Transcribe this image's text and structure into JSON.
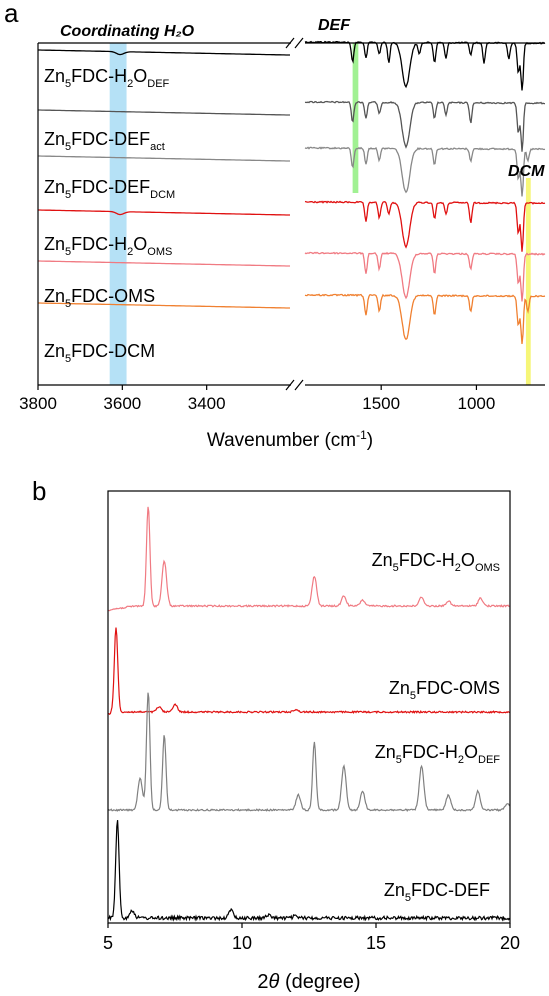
{
  "panel_a": {
    "letter": "a",
    "highlights": {
      "h2o": "Coordinating H₂O",
      "def": "DEF",
      "dcm": "DCM"
    },
    "xlabel_base": "Wavenumber (cm",
    "xlabel_sup": "-1",
    "xlabel_end": ")",
    "left_ticks": [
      "3800",
      "3600",
      "3400"
    ],
    "right_ticks": [
      "1500",
      "1000"
    ],
    "labels": [
      {
        "base": "Zn",
        "s1": "5",
        "mid": "FDC-H",
        "s2": "2",
        "tail": "O",
        "s3": "DEF"
      },
      {
        "base": "Zn",
        "s1": "5",
        "mid": "FDC-DEF",
        "s2": "act",
        "tail": "",
        "s3": ""
      },
      {
        "base": "Zn",
        "s1": "5",
        "mid": "FDC-DEF",
        "s2": "DCM",
        "tail": "",
        "s3": ""
      },
      {
        "base": "Zn",
        "s1": "5",
        "mid": "FDC-H",
        "s2": "2",
        "tail": "O",
        "s3": "OMS"
      },
      {
        "base": "Zn",
        "s1": "5",
        "mid": "FDC-OMS",
        "s2": "",
        "tail": "",
        "s3": ""
      },
      {
        "base": "Zn",
        "s1": "5",
        "mid": "FDC-DCM",
        "s2": "",
        "tail": "",
        "s3": ""
      }
    ],
    "colors": [
      "#000000",
      "#555555",
      "#888888",
      "#e01010",
      "#f07a82",
      "#f08030"
    ]
  },
  "panel_b": {
    "letter": "b",
    "xlabel_main": "2",
    "xlabel_theta": "θ",
    "xlabel_unit": " (degree)",
    "ticks": [
      "5",
      "10",
      "15",
      "20"
    ],
    "labels": [
      {
        "base": "Zn",
        "s1": "5",
        "mid": "FDC-H",
        "s2": "2",
        "tail": "O",
        "s3": "OMS"
      },
      {
        "base": "Zn",
        "s1": "5",
        "mid": "FDC-OMS",
        "s2": "",
        "tail": "",
        "s3": ""
      },
      {
        "base": "Zn",
        "s1": "5",
        "mid": "FDC-H",
        "s2": "2",
        "tail": "O",
        "s3": "DEF"
      },
      {
        "base": "Zn",
        "s1": "5",
        "mid": "FDC-DEF",
        "s2": "",
        "tail": "",
        "s3": ""
      }
    ],
    "colors": [
      "#f07a82",
      "#e01010",
      "#808080",
      "#000000"
    ]
  },
  "chart_data": [
    {
      "type": "line",
      "xlabel": "Wavenumber (cm-1)",
      "x_break": true,
      "xlim_left": [
        3800,
        3200
      ],
      "xlim_right": [
        1900,
        640
      ],
      "highlight_regions": [
        {
          "label": "Coordinating H2O",
          "x": [
            3630,
            3590
          ],
          "color": "#a8dcf5"
        },
        {
          "label": "DEF",
          "x": [
            1650,
            1620
          ],
          "color": "#90ee80"
        },
        {
          "label": "DCM",
          "x": [
            740,
            715
          ],
          "color": "#f5f560"
        }
      ],
      "series": [
        {
          "name": "Zn5FDC-H2ODEF",
          "color": "#000000",
          "peaks": [
            1650,
            1580,
            1510,
            1460,
            1370,
            1300,
            1220,
            1160,
            1030,
            960,
            830,
            780,
            760
          ]
        },
        {
          "name": "Zn5FDC-DEFact",
          "color": "#555555",
          "peaks": [
            1650,
            1580,
            1510,
            1370,
            1220,
            1160,
            1030,
            780,
            760
          ]
        },
        {
          "name": "Zn5FDC-DEFDCM",
          "color": "#888888",
          "peaks": [
            1650,
            1580,
            1510,
            1370,
            1220,
            1030,
            780,
            760,
            730
          ]
        },
        {
          "name": "Zn5FDC-H2OOMS",
          "color": "#e01010",
          "peaks": [
            1580,
            1510,
            1460,
            1370,
            1220,
            1160,
            1030,
            780,
            760
          ]
        },
        {
          "name": "Zn5FDC-OMS",
          "color": "#f07a82",
          "peaks": [
            1580,
            1510,
            1370,
            1220,
            1030,
            780,
            760
          ]
        },
        {
          "name": "Zn5FDC-DCM",
          "color": "#f08030",
          "peaks": [
            1580,
            1510,
            1370,
            1220,
            1030,
            780,
            760,
            730
          ]
        }
      ]
    },
    {
      "type": "line",
      "xlabel": "2θ (degree)",
      "xlim": [
        5,
        20
      ],
      "series": [
        {
          "name": "Zn5FDC-H2OOMS",
          "color": "#f07a82",
          "peaks": [
            [
              6.5,
              1.0
            ],
            [
              7.1,
              0.45
            ],
            [
              12.7,
              0.3
            ],
            [
              13.8,
              0.1
            ],
            [
              14.5,
              0.06
            ],
            [
              16.7,
              0.09
            ],
            [
              17.7,
              0.05
            ],
            [
              18.9,
              0.08
            ]
          ]
        },
        {
          "name": "Zn5FDC-OMS",
          "color": "#e01010",
          "peaks": [
            [
              5.3,
              1.0
            ],
            [
              6.9,
              0.06
            ],
            [
              7.5,
              0.09
            ],
            [
              12.0,
              0.03
            ]
          ]
        },
        {
          "name": "Zn5FDC-H2ODEF",
          "color": "#808080",
          "peaks": [
            [
              6.2,
              0.25
            ],
            [
              6.5,
              0.95
            ],
            [
              7.1,
              0.6
            ],
            [
              12.1,
              0.12
            ],
            [
              12.7,
              0.55
            ],
            [
              13.8,
              0.35
            ],
            [
              14.5,
              0.15
            ],
            [
              16.7,
              0.35
            ],
            [
              17.7,
              0.12
            ],
            [
              18.8,
              0.15
            ],
            [
              19.9,
              0.05
            ]
          ]
        },
        {
          "name": "Zn5FDC-DEF",
          "color": "#000000",
          "peaks": [
            [
              5.35,
              1.0
            ],
            [
              5.9,
              0.08
            ],
            [
              9.6,
              0.08
            ],
            [
              11.0,
              0.03
            ],
            [
              12.0,
              0.02
            ]
          ]
        }
      ]
    }
  ]
}
